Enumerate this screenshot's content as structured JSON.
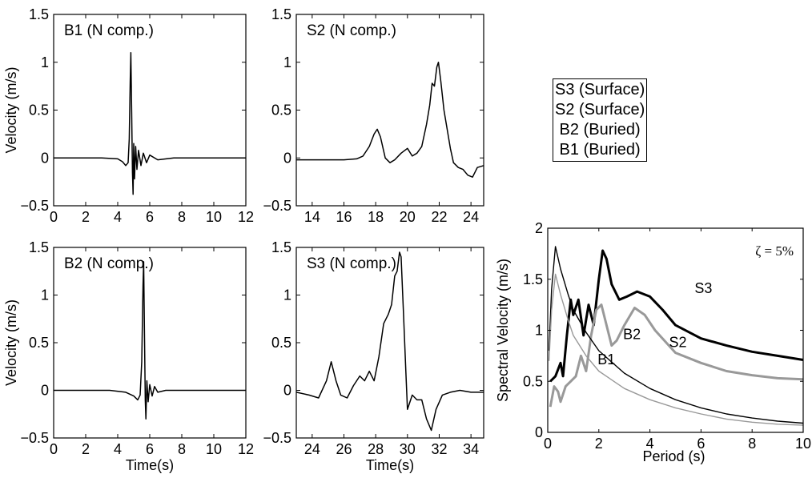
{
  "chart_data": [
    {
      "type": "line",
      "panel_label": "B1 (N comp.)",
      "xlabel": "",
      "ylabel": "Velocity (m/s)",
      "xlim": [
        0,
        12
      ],
      "ylim": [
        -0.5,
        1.5
      ],
      "x_ticks": [
        "0",
        "2",
        "4",
        "6",
        "8",
        "10",
        "12"
      ],
      "y_ticks": [
        "−0.5",
        "0",
        "0.5",
        "1",
        "1.5"
      ],
      "series": [
        {
          "x": [
            0,
            3.0,
            4.0,
            4.3,
            4.5,
            4.65,
            4.72,
            4.78,
            4.82,
            4.87,
            4.92,
            4.96,
            5.0,
            5.05,
            5.12,
            5.2,
            5.3,
            5.45,
            5.6,
            5.8,
            6.0,
            6.5,
            7.5,
            12
          ],
          "y": [
            0,
            0,
            -0.01,
            -0.04,
            -0.08,
            -0.05,
            0.2,
            0.8,
            1.1,
            0.5,
            -0.15,
            -0.38,
            0.15,
            -0.22,
            0.12,
            -0.12,
            0.08,
            -0.08,
            0.05,
            -0.05,
            0.03,
            -0.02,
            0.0,
            0.0
          ]
        }
      ]
    },
    {
      "type": "line",
      "panel_label": "S2 (N comp.)",
      "xlabel": "",
      "ylabel": "",
      "xlim": [
        13,
        24.8
      ],
      "ylim": [
        -0.5,
        1.5
      ],
      "x_ticks": [
        "14",
        "16",
        "18",
        "20",
        "22",
        "24"
      ],
      "y_ticks": [
        "−0.5",
        "0",
        "0.5",
        "1",
        "1.5"
      ],
      "series": [
        {
          "x": [
            13,
            15.0,
            16.0,
            16.8,
            17.2,
            17.6,
            17.9,
            18.1,
            18.3,
            18.6,
            18.9,
            19.2,
            19.6,
            20.0,
            20.3,
            20.6,
            20.9,
            21.2,
            21.4,
            21.55,
            21.7,
            21.85,
            21.95,
            22.1,
            22.3,
            22.5,
            22.7,
            22.9,
            23.2,
            23.5,
            23.8,
            24.1,
            24.4,
            24.8
          ],
          "y": [
            -0.02,
            -0.02,
            -0.02,
            -0.01,
            0.02,
            0.12,
            0.25,
            0.3,
            0.22,
            0.0,
            -0.05,
            -0.02,
            0.05,
            0.1,
            0.02,
            0.05,
            0.12,
            0.35,
            0.55,
            0.78,
            0.75,
            0.95,
            1.0,
            0.8,
            0.5,
            0.3,
            0.1,
            -0.05,
            -0.1,
            -0.12,
            -0.18,
            -0.2,
            -0.1,
            -0.08
          ]
        }
      ]
    },
    {
      "type": "line",
      "panel_label": "B2 (N comp.)",
      "xlabel": "Time(s)",
      "ylabel": "Velocity (m/s)",
      "xlim": [
        0,
        12
      ],
      "ylim": [
        -0.5,
        1.5
      ],
      "x_ticks": [
        "0",
        "2",
        "4",
        "6",
        "8",
        "10",
        "12"
      ],
      "y_ticks": [
        "−0.5",
        "0",
        "0.5",
        "1",
        "1.5"
      ],
      "series": [
        {
          "x": [
            0,
            3.5,
            4.5,
            5.0,
            5.25,
            5.4,
            5.5,
            5.58,
            5.62,
            5.67,
            5.72,
            5.76,
            5.82,
            5.9,
            6.0,
            6.15,
            6.3,
            6.5,
            7.0,
            8.0,
            12
          ],
          "y": [
            0,
            0,
            -0.02,
            -0.06,
            -0.1,
            -0.05,
            0.3,
            1.1,
            1.35,
            0.6,
            -0.1,
            -0.3,
            0.1,
            -0.12,
            0.06,
            -0.06,
            0.04,
            -0.02,
            0.0,
            0.0,
            0.0
          ]
        }
      ]
    },
    {
      "type": "line",
      "panel_label": "S3 (N comp.)",
      "xlabel": "Time(s)",
      "ylabel": "",
      "xlim": [
        23,
        34.8
      ],
      "ylim": [
        -0.5,
        1.5
      ],
      "x_ticks": [
        "24",
        "26",
        "28",
        "30",
        "32",
        "34"
      ],
      "y_ticks": [
        "−0.5",
        "0",
        "0.5",
        "1",
        "1.5"
      ],
      "series": [
        {
          "x": [
            23,
            23.8,
            24.4,
            24.9,
            25.2,
            25.5,
            25.8,
            26.2,
            26.6,
            27.0,
            27.3,
            27.6,
            27.9,
            28.2,
            28.5,
            28.8,
            29.0,
            29.2,
            29.35,
            29.5,
            29.6,
            29.75,
            29.9,
            30.0,
            30.3,
            30.6,
            30.9,
            31.2,
            31.5,
            31.8,
            32.2,
            32.7,
            33.3,
            34.0,
            34.8
          ],
          "y": [
            -0.02,
            -0.05,
            -0.08,
            0.1,
            0.3,
            0.1,
            -0.05,
            -0.08,
            0.05,
            0.15,
            0.1,
            0.2,
            0.1,
            0.35,
            0.7,
            0.8,
            0.9,
            1.2,
            1.25,
            1.45,
            1.4,
            0.8,
            0.2,
            -0.2,
            -0.05,
            -0.1,
            -0.1,
            -0.3,
            -0.42,
            -0.2,
            -0.05,
            -0.02,
            0.0,
            -0.02,
            -0.02
          ]
        }
      ]
    },
    {
      "type": "line",
      "annotation": "ζ = 5%",
      "xlabel": "Period (s)",
      "ylabel": "Spectral Velocity (m/s)",
      "xlim": [
        0,
        10
      ],
      "ylim": [
        0,
        2
      ],
      "x_ticks": [
        "0",
        "2",
        "4",
        "6",
        "8",
        "10"
      ],
      "y_ticks": [
        "0",
        "0.5",
        "1",
        "1.5",
        "2"
      ],
      "series": [
        {
          "name": "S3",
          "color": "#000000",
          "stroke": "thick",
          "x": [
            0.1,
            0.3,
            0.5,
            0.6,
            0.75,
            0.9,
            1.0,
            1.2,
            1.4,
            1.6,
            1.8,
            2.0,
            2.15,
            2.3,
            2.5,
            2.8,
            3.1,
            3.5,
            4.0,
            4.5,
            5.0,
            6.0,
            7.0,
            8.0,
            9.0,
            10
          ],
          "y": [
            0.5,
            0.55,
            0.68,
            0.55,
            0.95,
            1.3,
            1.15,
            1.3,
            0.95,
            1.25,
            1.05,
            1.5,
            1.78,
            1.7,
            1.45,
            1.3,
            1.33,
            1.38,
            1.33,
            1.2,
            1.05,
            0.92,
            0.85,
            0.79,
            0.75,
            0.71
          ]
        },
        {
          "name": "S2",
          "color": "#999999",
          "stroke": "thick",
          "x": [
            0.1,
            0.25,
            0.4,
            0.5,
            0.7,
            0.9,
            1.1,
            1.3,
            1.5,
            1.7,
            1.9,
            2.1,
            2.3,
            2.5,
            2.7,
            3.0,
            3.4,
            3.8,
            4.2,
            5.0,
            6.0,
            7.0,
            8.0,
            9.0,
            10
          ],
          "y": [
            0.25,
            0.45,
            0.4,
            0.3,
            0.45,
            0.5,
            0.55,
            0.75,
            0.6,
            0.95,
            1.2,
            1.25,
            1.05,
            0.85,
            0.9,
            1.05,
            1.22,
            1.15,
            1.0,
            0.78,
            0.68,
            0.6,
            0.56,
            0.53,
            0.52
          ]
        },
        {
          "name": "B2",
          "color": "#000000",
          "stroke": "thin",
          "x": [
            0.05,
            0.15,
            0.3,
            0.5,
            0.8,
            1.0,
            1.5,
            2.0,
            3.0,
            4.0,
            5.0,
            6.0,
            7.0,
            8.0,
            9.0,
            10
          ],
          "y": [
            0.8,
            1.4,
            1.82,
            1.6,
            1.35,
            1.2,
            0.98,
            0.8,
            0.58,
            0.43,
            0.32,
            0.24,
            0.18,
            0.14,
            0.11,
            0.09
          ]
        },
        {
          "name": "B1",
          "color": "#999999",
          "stroke": "thin",
          "x": [
            0.05,
            0.15,
            0.3,
            0.5,
            0.8,
            1.0,
            1.5,
            2.0,
            3.0,
            4.0,
            5.0,
            6.0,
            7.0,
            8.0,
            9.0,
            10
          ],
          "y": [
            0.7,
            1.2,
            1.55,
            1.35,
            1.1,
            0.95,
            0.75,
            0.6,
            0.43,
            0.32,
            0.24,
            0.18,
            0.13,
            0.1,
            0.08,
            0.07
          ]
        }
      ]
    }
  ],
  "legend": {
    "entries": [
      "S3 (Surface)",
      "S2 (Surface)",
      "B2 (Buried)",
      "B1 (Buried)"
    ]
  }
}
